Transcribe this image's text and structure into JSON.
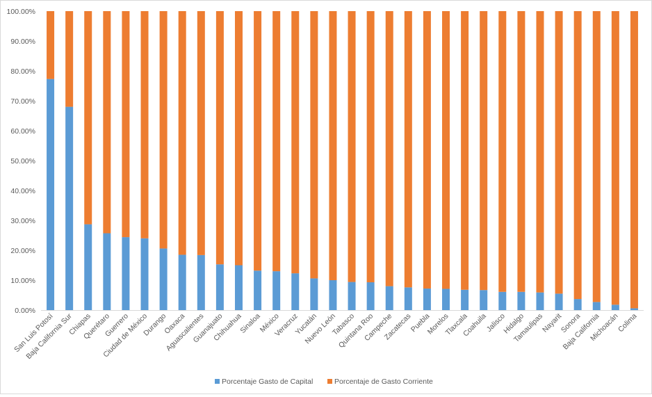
{
  "chart_data": {
    "type": "bar",
    "stacked": "percent",
    "title": "",
    "xlabel": "",
    "ylabel": "",
    "ylim": [
      0,
      100
    ],
    "y_ticks": [
      "0.00%",
      "10.00%",
      "20.00%",
      "30.00%",
      "40.00%",
      "50.00%",
      "60.00%",
      "70.00%",
      "80.00%",
      "90.00%",
      "100.00%"
    ],
    "grid": false,
    "legend_position": "bottom",
    "categories": [
      "San Luis Potosí",
      "Baja California Sur",
      "Chiapas",
      "Querétaro",
      "Guerrero",
      "Ciudad de México",
      "Durango",
      "Oaxaca",
      "Aguascalientes",
      "Guanajuato",
      "Chihuahua",
      "Sinaloa",
      "México",
      "Veracruz",
      "Yucatán",
      "Nuevo León",
      "Tabasco",
      "Quintana Roo",
      "Campeche",
      "Zacatecas",
      "Puebla",
      "Morelos",
      "Tlaxcala",
      "Coahuila",
      "Jalisco",
      "Hidalgo",
      "Tamaulipas",
      "Nayarit",
      "Sonora",
      "Baja California",
      "Michoacán",
      "Colima"
    ],
    "series": [
      {
        "name": "Porcentaje Gasto de Capital",
        "color": "#5B9BD5",
        "values": [
          77.3,
          68.0,
          28.7,
          25.7,
          24.4,
          24.0,
          20.6,
          18.5,
          18.4,
          15.3,
          15.0,
          13.2,
          13.0,
          12.3,
          10.6,
          10.0,
          9.4,
          9.3,
          8.0,
          7.6,
          7.2,
          7.1,
          6.8,
          6.7,
          6.1,
          6.1,
          5.9,
          5.5,
          3.7,
          2.7,
          1.8,
          0.6
        ]
      },
      {
        "name": "Porcentaje de Gasto Corriente",
        "color": "#ED7D31",
        "values": [
          22.7,
          32.0,
          71.3,
          74.3,
          75.6,
          76.0,
          79.4,
          81.5,
          81.6,
          84.7,
          85.0,
          86.8,
          87.0,
          87.7,
          89.4,
          90.0,
          90.6,
          90.7,
          92.0,
          92.4,
          92.8,
          92.9,
          93.2,
          93.3,
          93.9,
          93.9,
          94.1,
          94.5,
          96.3,
          97.3,
          98.2,
          99.4
        ]
      }
    ]
  }
}
